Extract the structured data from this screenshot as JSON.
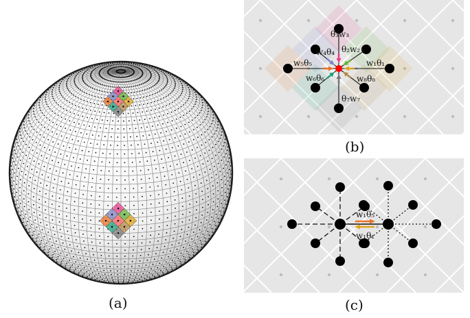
{
  "captions": {
    "a": "(a)",
    "b": "(b)",
    "c": "(c)"
  },
  "panel_b": {
    "labels": [
      {
        "id": "w3",
        "text": "θ₃w₃"
      },
      {
        "id": "w4",
        "text": "w₄θ₄"
      },
      {
        "id": "w2",
        "text": "θ₂w₂"
      },
      {
        "id": "w1",
        "text": "w₁θ₁"
      },
      {
        "id": "w5",
        "text": "w₅θ₅"
      },
      {
        "id": "w6",
        "text": "w₆θ₆"
      },
      {
        "id": "w8",
        "text": "w₈θ₈"
      },
      {
        "id": "w7",
        "text": "θ₇w₇"
      }
    ]
  },
  "panel_c": {
    "labels": [
      {
        "id": "top",
        "text": "w₁θ₅"
      },
      {
        "id": "bottom",
        "text": "w₁θ₁"
      }
    ]
  },
  "colors": {
    "pink": "#e6418c",
    "green": "#66b33a",
    "orange": "#e8732a",
    "yellow": "#e0a41f",
    "blue": "#7f86c6",
    "teal": "#1fa07d",
    "brown": "#b58949",
    "gray": "#7a7a7a",
    "center_red": "#ff0000"
  }
}
